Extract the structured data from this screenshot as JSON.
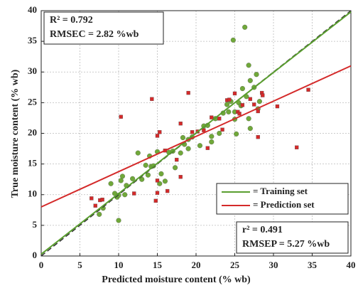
{
  "chart_data": {
    "type": "scatter",
    "x_label": "Predicted moisture content (% wb)",
    "y_label": "True moisture content (% wb)",
    "xlim": [
      0,
      40
    ],
    "ylim": [
      0,
      40
    ],
    "xticks": [
      0,
      5,
      10,
      15,
      20,
      25,
      30,
      35,
      40
    ],
    "yticks": [
      0,
      5,
      10,
      15,
      20,
      25,
      30,
      35,
      40
    ],
    "grid": true,
    "reference_line": {
      "x": [
        0,
        40
      ],
      "y": [
        0,
        40
      ],
      "color": "#333333"
    },
    "series": [
      {
        "name": "= Training set",
        "color": "#70a83a",
        "marker": "circle",
        "fit": {
          "x": [
            0,
            40
          ],
          "y": [
            0.3,
            39.8
          ],
          "color": "#5a9e2f"
        },
        "x": [
          7.5,
          8,
          9,
          9.5,
          9.8,
          10,
          10,
          10.3,
          10.5,
          10.8,
          11,
          11.8,
          12.5,
          13,
          13.5,
          13.8,
          14,
          14.2,
          14.5,
          15,
          15.3,
          15.5,
          16,
          16.5,
          17,
          17.3,
          18,
          18.3,
          18.5,
          19,
          19,
          19.5,
          20.5,
          21,
          21.5,
          22,
          22,
          22.5,
          23,
          23.5,
          24,
          24.5,
          24.8,
          25,
          25.2,
          25.5,
          25.8,
          26,
          26.3,
          26.5,
          26.8,
          27,
          27.5,
          27.8,
          28,
          28.2,
          27,
          26.8,
          25,
          24.2
        ],
        "y": [
          6.8,
          7.8,
          11.8,
          10.2,
          9.6,
          9.9,
          5.8,
          12.3,
          13,
          10,
          11.5,
          12.6,
          16.8,
          12.5,
          14.8,
          13.2,
          16.3,
          14.6,
          14.7,
          17,
          11.8,
          13.4,
          12.2,
          16.9,
          17.1,
          14.4,
          16.8,
          19.3,
          18.2,
          19,
          17.5,
          19.4,
          18,
          21.2,
          21.3,
          19.5,
          18.6,
          22.4,
          20,
          23.3,
          24.7,
          25.2,
          35.2,
          23.5,
          19.9,
          25,
          24.5,
          27.3,
          37.3,
          26,
          31.1,
          28.6,
          27.5,
          29.6,
          24,
          25.2,
          20.8,
          22.4,
          22.3,
          23.5
        ]
      },
      {
        "name": "= Prediction set",
        "color": "#d42a2a",
        "marker": "square",
        "fit": {
          "x": [
            0,
            40
          ],
          "y": [
            8,
            31
          ],
          "color": "#d42a2a"
        },
        "x": [
          6.5,
          7,
          7.6,
          7.9,
          10.3,
          12,
          14.3,
          15,
          14.8,
          15,
          15.3,
          15,
          16.3,
          16,
          17.5,
          18,
          18,
          19,
          19.5,
          21,
          22,
          23,
          23.4,
          24,
          24.3,
          25,
          25.4,
          25.6,
          26,
          27,
          27.5,
          28,
          28.5,
          28.6,
          28,
          30.5,
          33,
          34.5,
          20.2,
          21.5
        ],
        "y": [
          9.4,
          8.2,
          9.1,
          9.2,
          22.7,
          10.2,
          25.6,
          10.3,
          9,
          19.6,
          20.2,
          12.3,
          10.6,
          17.2,
          15.7,
          12.9,
          21.6,
          26.6,
          20.2,
          20.5,
          22.6,
          22.4,
          20.6,
          25.4,
          25.5,
          26.5,
          23.5,
          23.2,
          24.6,
          25.6,
          24.7,
          23.6,
          26.6,
          26.2,
          19.4,
          24.4,
          17.7,
          27.1,
          20.3,
          17.6
        ]
      }
    ],
    "legend": "lower right",
    "annotations": [
      {
        "lines": [
          "R² = 0.792",
          "RMSEC = 2.82 %wb"
        ],
        "position": "upper left"
      },
      {
        "lines": [
          "r² = 0.491",
          "RMSEP = 5.27 %wb"
        ],
        "position": "lower right"
      }
    ]
  }
}
